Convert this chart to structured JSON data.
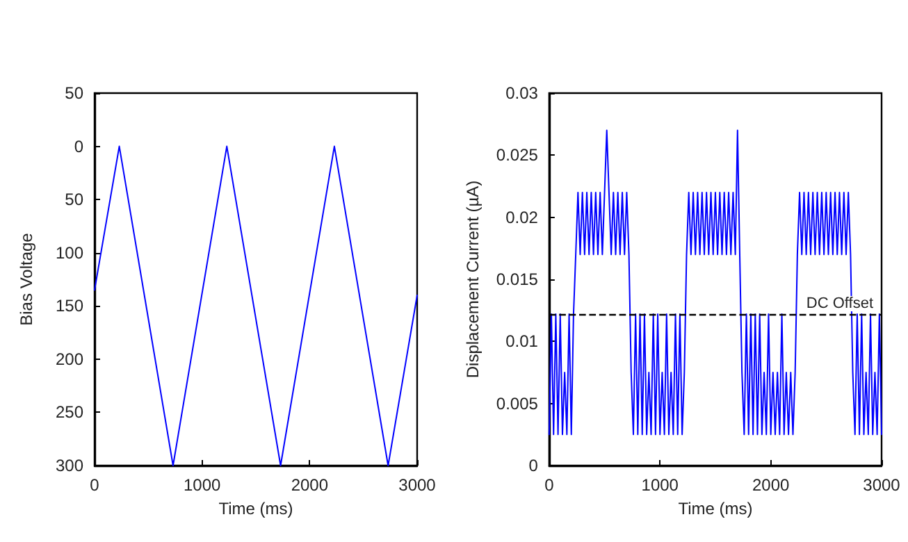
{
  "chart_data": [
    {
      "type": "line",
      "xlabel": "Time (ms)",
      "ylabel": "Bias Voltage",
      "marker": "none",
      "line_style": "solid",
      "xlim": [
        0,
        3000
      ],
      "xticks": [
        0,
        1000,
        2000,
        3000
      ],
      "ylim": [
        300,
        -50
      ],
      "yticks": [
        {
          "value": -50,
          "label": "50"
        },
        0,
        50,
        100,
        150,
        200,
        250,
        300
      ],
      "x": [
        0,
        230,
        730,
        1230,
        1730,
        2230,
        2730,
        3000
      ],
      "series": [
        {
          "color": "#0000ff",
          "values": [
            135,
            0,
            300,
            0,
            300,
            0,
            300,
            140
          ]
        }
      ]
    },
    {
      "type": "line",
      "xlabel": "Time (ms)",
      "ylabel": "Displacement Current (µA)",
      "marker": "none",
      "line_style": "solid",
      "xlim": [
        0,
        3000
      ],
      "xticks": [
        0,
        1000,
        2000,
        3000
      ],
      "ylim": [
        0,
        0.03
      ],
      "yticks": [
        0,
        0.005,
        0.01,
        0.015,
        0.02,
        0.025,
        0.03
      ],
      "x": [
        0,
        20,
        40,
        60,
        80,
        100,
        120,
        140,
        160,
        180,
        200,
        220,
        240,
        260,
        280,
        300,
        320,
        340,
        360,
        380,
        400,
        420,
        440,
        460,
        480,
        500,
        520,
        540,
        560,
        580,
        600,
        620,
        640,
        660,
        680,
        700,
        720,
        740,
        760,
        780,
        800,
        820,
        840,
        860,
        880,
        900,
        920,
        940,
        960,
        980,
        1000,
        1020,
        1040,
        1060,
        1080,
        1100,
        1120,
        1140,
        1160,
        1180,
        1200,
        1220,
        1240,
        1260,
        1280,
        1300,
        1320,
        1340,
        1360,
        1380,
        1400,
        1420,
        1440,
        1460,
        1480,
        1500,
        1520,
        1540,
        1560,
        1580,
        1600,
        1620,
        1640,
        1660,
        1680,
        1700,
        1720,
        1740,
        1760,
        1780,
        1800,
        1820,
        1840,
        1860,
        1880,
        1900,
        1920,
        1940,
        1960,
        1980,
        2000,
        2020,
        2040,
        2060,
        2080,
        2100,
        2120,
        2140,
        2160,
        2180,
        2200,
        2220,
        2240,
        2260,
        2280,
        2300,
        2320,
        2340,
        2360,
        2380,
        2400,
        2420,
        2440,
        2460,
        2480,
        2500,
        2520,
        2540,
        2560,
        2580,
        2600,
        2620,
        2640,
        2660,
        2680,
        2700,
        2720,
        2740,
        2760,
        2780,
        2800,
        2820,
        2840,
        2860,
        2880,
        2900,
        2920,
        2940,
        2960,
        2980,
        3000
      ],
      "series": [
        {
          "color": "#0000ff",
          "values": [
            0.0025,
            0.0122,
            0.0025,
            0.0122,
            0.0025,
            0.0122,
            0.0025,
            0.0075,
            0.0025,
            0.0122,
            0.0025,
            0.0122,
            0.017,
            0.022,
            0.017,
            0.022,
            0.017,
            0.022,
            0.017,
            0.022,
            0.017,
            0.022,
            0.017,
            0.022,
            0.017,
            0.022,
            0.027,
            0.022,
            0.017,
            0.022,
            0.017,
            0.022,
            0.017,
            0.022,
            0.017,
            0.022,
            0.017,
            0.0075,
            0.0025,
            0.0122,
            0.0025,
            0.0122,
            0.0025,
            0.0122,
            0.0025,
            0.0075,
            0.0025,
            0.0122,
            0.0025,
            0.0122,
            0.0025,
            0.0075,
            0.0025,
            0.0122,
            0.0025,
            0.0075,
            0.0025,
            0.0122,
            0.0025,
            0.0122,
            0.0025,
            0.0075,
            0.017,
            0.022,
            0.017,
            0.022,
            0.017,
            0.022,
            0.017,
            0.022,
            0.017,
            0.022,
            0.017,
            0.022,
            0.017,
            0.022,
            0.017,
            0.022,
            0.017,
            0.022,
            0.017,
            0.022,
            0.017,
            0.022,
            0.017,
            0.027,
            0.017,
            0.0075,
            0.0025,
            0.0122,
            0.0025,
            0.0122,
            0.0025,
            0.0122,
            0.0025,
            0.0122,
            0.0025,
            0.0075,
            0.0025,
            0.0122,
            0.0025,
            0.0075,
            0.0025,
            0.0075,
            0.0025,
            0.0122,
            0.0025,
            0.0075,
            0.0025,
            0.0075,
            0.0025,
            0.0075,
            0.017,
            0.022,
            0.017,
            0.022,
            0.017,
            0.022,
            0.017,
            0.022,
            0.017,
            0.022,
            0.017,
            0.022,
            0.017,
            0.022,
            0.017,
            0.022,
            0.017,
            0.022,
            0.017,
            0.022,
            0.017,
            0.022,
            0.017,
            0.022,
            0.017,
            0.0075,
            0.0025,
            0.0122,
            0.0025,
            0.0122,
            0.0025,
            0.0075,
            0.0025,
            0.0122,
            0.0025,
            0.0075,
            0.0025,
            0.0122,
            0.0025
          ]
        }
      ],
      "ref_lines": [
        {
          "axis": "y",
          "value": 0.0122,
          "label": "DC Offset",
          "color": "#000000",
          "line_style": "dashed"
        }
      ]
    }
  ]
}
